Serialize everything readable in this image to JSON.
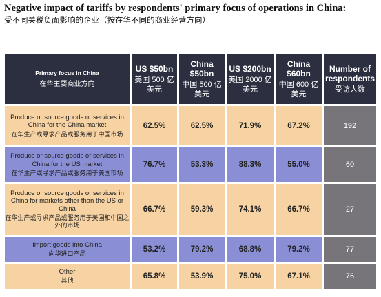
{
  "title": "Negative impact of tariffs by respondents' primary focus of operations in China:",
  "subtitle": "受不同关税负面影响的企业（按在华不同的商业经营方向）",
  "header": {
    "focus": {
      "en": "Primary focus in China",
      "zh": "在华主要商业方向"
    },
    "columns": [
      {
        "en": "US $50bn",
        "zh": "美国 500 亿美元"
      },
      {
        "en": "China $50bn",
        "zh": "中国 500 亿美元"
      },
      {
        "en": "US $200bn",
        "zh": "美国 2000 亿美元"
      },
      {
        "en": "China $60bn",
        "zh": "中国 600 亿美元"
      },
      {
        "en": "Number of respondents",
        "zh": "受访人数"
      }
    ]
  },
  "rows": [
    {
      "en": "Produce or source goods or services in China for the China market",
      "zh": "在华生产或寻求产品或服务用于中国市场",
      "values": [
        "62.5%",
        "62.5%",
        "71.9%",
        "67.2%"
      ],
      "count": "192",
      "color": "#f7d3a3"
    },
    {
      "en": "Produce or source goods or services in China for the US market",
      "zh": "在华生产或寻求产品或服务用于美国市场",
      "values": [
        "76.7%",
        "53.3%",
        "88.3%",
        "55.0%"
      ],
      "count": "60",
      "color": "#8a8ed4"
    },
    {
      "en": "Produce or source goods or services in China for markets other than the US or China",
      "zh": "在华生产或寻求产品或服务用于美国和中国之外的市场",
      "values": [
        "66.7%",
        "59.3%",
        "74.1%",
        "66.7%"
      ],
      "count": "27",
      "color": "#f7d3a3"
    },
    {
      "en": "Import goods into China",
      "zh": "向华进口产品",
      "values": [
        "53.2%",
        "79.2%",
        "68.8%",
        "79.2%"
      ],
      "count": "77",
      "color": "#8a8ed4"
    },
    {
      "en": "Other",
      "zh": "其他",
      "values": [
        "65.8%",
        "53.9%",
        "75.0%",
        "67.1%"
      ],
      "count": "76",
      "color": "#f7d3a3"
    }
  ],
  "colors": {
    "header_bg": "#2b2f40",
    "count_bg": "#77747a",
    "peach": "#f7d3a3",
    "blue": "#8a8ed4"
  }
}
